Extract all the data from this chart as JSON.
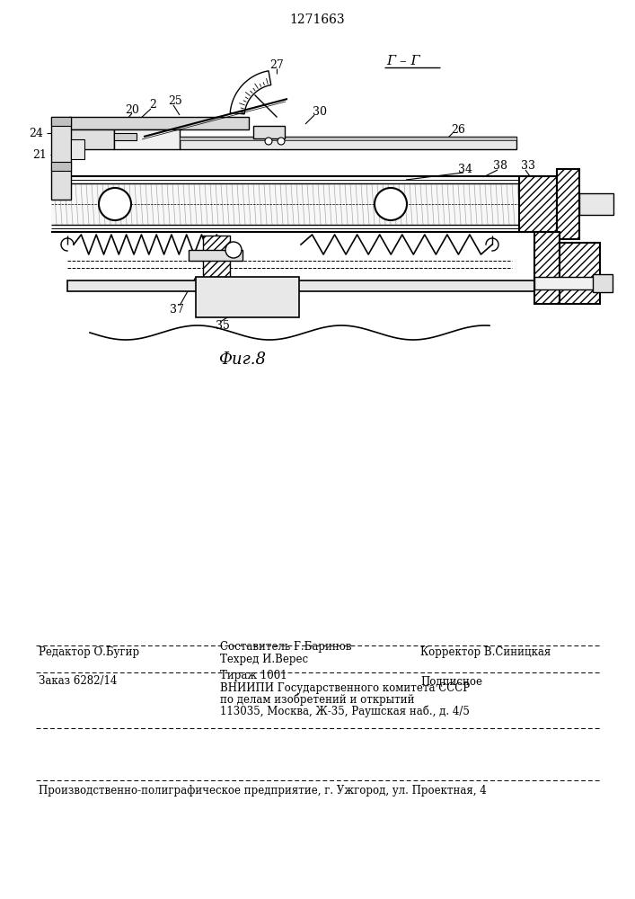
{
  "patent_number": "1271663",
  "fig_label": "Фиг.8",
  "section_label": "Г – Г",
  "bg_color": "#ffffff",
  "footer": {
    "line1_col1": "Редактор О.Бугир",
    "line1_col2a": "Составитель Г.Баринов",
    "line1_col2b": "Техред И.Верес",
    "line1_col3": "Корректор В.Синицкая",
    "line2_col1": "Заказ 6282/14",
    "line2_col2a": "Тираж 1001",
    "line2_col3": "Подписное",
    "line2_col2b": "ВНИИПИ Государственного комитета СССР",
    "line2_col2c": "по делам изобретений и открытий",
    "line2_col2d": "113035, Москва, Ж-35, Раушская наб., д. 4/5",
    "line3": "Производственно-полиграфическое предприятие, г. Ужгород, ул. Проектная, 4"
  }
}
